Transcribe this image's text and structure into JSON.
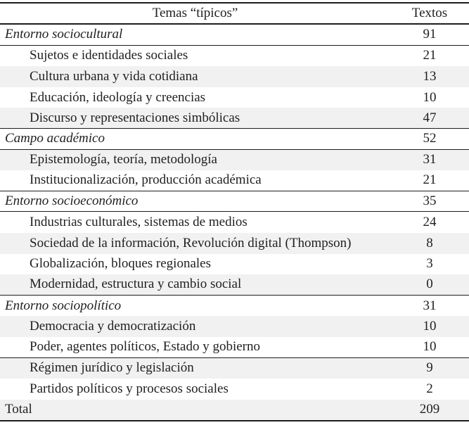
{
  "table": {
    "header": {
      "col1": "Temas “típicos”",
      "col2": "Textos"
    },
    "rows": [
      {
        "label": "Entorno sociocultural",
        "value": "91",
        "type": "category",
        "bg": "white",
        "line_below": true
      },
      {
        "label": "Sujetos e identidades sociales",
        "value": "21",
        "type": "sub",
        "bg": "white",
        "line_below": false
      },
      {
        "label": "Cultura urbana y vida cotidiana",
        "value": "13",
        "type": "sub",
        "bg": "gray",
        "line_below": false
      },
      {
        "label": "Educación, ideología y creencias",
        "value": "10",
        "type": "sub",
        "bg": "white",
        "line_below": false
      },
      {
        "label": "Discurso y representaciones simbólicas",
        "value": "47",
        "type": "sub",
        "bg": "gray",
        "line_below": true
      },
      {
        "label": "Campo académico",
        "value": "52",
        "type": "category",
        "bg": "white",
        "line_below": true
      },
      {
        "label": "Epistemología, teoría, metodología",
        "value": "31",
        "type": "sub",
        "bg": "gray",
        "line_below": false
      },
      {
        "label": "Institucionalización, producción académica",
        "value": "21",
        "type": "sub",
        "bg": "white",
        "line_below": true
      },
      {
        "label": "Entorno socioeconómico",
        "value": "35",
        "type": "category",
        "bg": "white",
        "line_below": true
      },
      {
        "label": "Industrias culturales, sistemas de medios",
        "value": "24",
        "type": "sub",
        "bg": "white",
        "line_below": false
      },
      {
        "label": "Sociedad de la información, Revolución digital (Thompson)",
        "value": "8",
        "type": "sub",
        "bg": "gray",
        "line_below": false
      },
      {
        "label": "Globalización, bloques regionales",
        "value": "3",
        "type": "sub",
        "bg": "white",
        "line_below": false
      },
      {
        "label": "Modernidad, estructura y cambio social",
        "value": "0",
        "type": "sub",
        "bg": "gray",
        "line_below": true
      },
      {
        "label": "Entorno sociopolítico",
        "value": "31",
        "type": "category",
        "bg": "white",
        "line_below": false
      },
      {
        "label": "Democracia y democratización",
        "value": "10",
        "type": "sub",
        "bg": "gray",
        "line_below": false
      },
      {
        "label": "Poder, agentes políticos, Estado y gobierno",
        "value": "10",
        "type": "sub",
        "bg": "white",
        "line_below": true
      },
      {
        "label": "Régimen jurídico y legislación",
        "value": "9",
        "type": "sub",
        "bg": "gray",
        "line_below": false
      },
      {
        "label": "Partidos políticos y procesos sociales",
        "value": "2",
        "type": "sub",
        "bg": "white",
        "line_below": false
      },
      {
        "label": "Total",
        "value": "209",
        "type": "total",
        "bg": "gray",
        "line_below": false
      }
    ],
    "totals": {
      "entorno_sociocultural": 91,
      "campo_academico": 52,
      "entorno_socioeconomico": 35,
      "entorno_sociopolitico": 31,
      "total": 209
    },
    "colors": {
      "stripe": "#f1f1f1",
      "rule": "#1d1d21",
      "text": "#1f1f23"
    }
  }
}
